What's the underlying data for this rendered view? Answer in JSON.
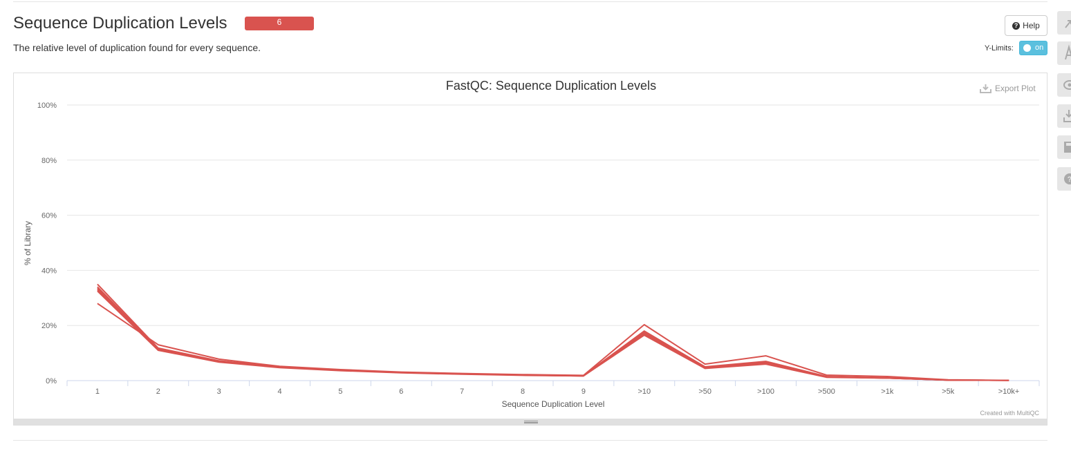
{
  "section": {
    "title": "Sequence Duplication Levels",
    "badge": "6",
    "description": "The relative level of duplication found for every sequence."
  },
  "controls": {
    "help_label": "Help",
    "ylimits_label": "Y-Limits:",
    "ylimits_state": "on",
    "export_label": "Export Plot"
  },
  "credit": "Created with MultiQC",
  "colors": {
    "series": "#d9534f",
    "badge": "#d9534f",
    "toggle": "#5bc0de"
  },
  "sidebar_icons": [
    "arrow-icon",
    "font-icon",
    "eye-icon",
    "download-icon",
    "save-icon",
    "question-icon"
  ],
  "chart_data": {
    "type": "line",
    "title": "FastQC: Sequence Duplication Levels",
    "xlabel": "Sequence Duplication Level",
    "ylabel": "% of Library",
    "categories": [
      "1",
      "2",
      "3",
      "4",
      "5",
      "6",
      "7",
      "8",
      "9",
      ">10",
      ">50",
      ">100",
      ">500",
      ">1k",
      ">5k",
      ">10k+"
    ],
    "ylim": [
      0,
      100
    ],
    "yticks": [
      "0%",
      "20%",
      "40%",
      "60%",
      "80%",
      "100%"
    ],
    "yticks_values": [
      0,
      20,
      40,
      60,
      80,
      100
    ],
    "grid": true,
    "legend": "none",
    "series": [
      {
        "values": [
          35.0,
          11.8,
          7.2,
          5.0,
          3.9,
          3.0,
          2.5,
          2.1,
          1.8,
          18.0,
          5.0,
          7.0,
          1.5,
          1.0,
          0.2,
          0.1
        ]
      },
      {
        "values": [
          34.0,
          11.5,
          7.0,
          4.9,
          3.8,
          3.0,
          2.5,
          2.0,
          1.8,
          17.5,
          4.8,
          6.8,
          1.4,
          1.0,
          0.2,
          0.1
        ]
      },
      {
        "values": [
          33.5,
          11.3,
          6.9,
          4.8,
          3.7,
          2.9,
          2.4,
          2.0,
          1.7,
          17.0,
          4.6,
          6.5,
          1.3,
          0.9,
          0.2,
          0.1
        ]
      },
      {
        "values": [
          33.0,
          11.2,
          6.8,
          4.8,
          3.7,
          2.9,
          2.4,
          2.0,
          1.7,
          16.8,
          4.5,
          6.3,
          1.3,
          0.9,
          0.2,
          0.1
        ]
      },
      {
        "values": [
          32.5,
          11.0,
          6.7,
          4.7,
          3.6,
          2.8,
          2.3,
          1.9,
          1.7,
          16.5,
          4.4,
          6.0,
          1.2,
          0.9,
          0.2,
          0.1
        ]
      },
      {
        "values": [
          28.0,
          13.0,
          7.8,
          5.2,
          4.0,
          3.1,
          2.6,
          2.2,
          1.9,
          20.3,
          6.0,
          9.0,
          2.0,
          1.5,
          0.3,
          0.1
        ]
      }
    ]
  }
}
